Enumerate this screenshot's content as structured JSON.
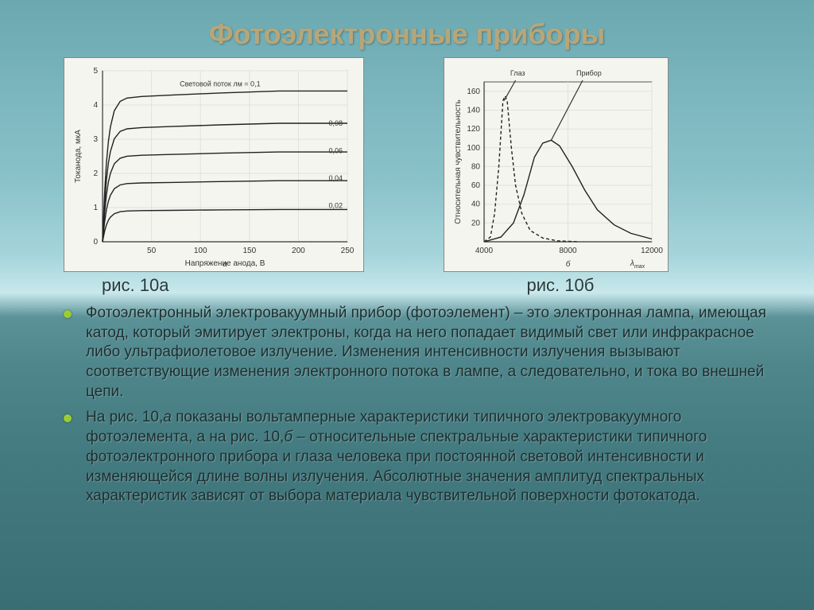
{
  "title": "Фотоэлектронные приборы",
  "chartA": {
    "type": "line",
    "caption": "рис. 10а",
    "sub": "а",
    "xlabel": "Напряжение анода, В",
    "ylabel": "Токанода, мкА",
    "legend_text": "Световой поток лм = 0,1",
    "xlim": [
      0,
      250
    ],
    "ylim": [
      0,
      5
    ],
    "xticks": [
      50,
      100,
      150,
      200,
      250
    ],
    "yticks": [
      0,
      1,
      2,
      3,
      4,
      5
    ],
    "series": [
      {
        "label": "0,1",
        "sat": 4.2
      },
      {
        "label": "0,08",
        "sat": 3.3
      },
      {
        "label": "0,06",
        "sat": 2.5
      },
      {
        "label": "0,04",
        "sat": 1.7
      },
      {
        "label": "0,02",
        "sat": 0.9
      }
    ],
    "curve_color": "#222222",
    "grid_color": "#e0e0e0",
    "background_color": "#f5f5f0",
    "axis_fontsize": 10
  },
  "chartB": {
    "type": "line",
    "caption": "рис. 10б",
    "sub": "б",
    "xlabel": "λmax",
    "ylabel": "Относительная чувствительность",
    "xlim": [
      4000,
      12000
    ],
    "ylim": [
      0,
      170
    ],
    "xticks": [
      4000,
      8000,
      12000
    ],
    "yticks": [
      20,
      40,
      60,
      80,
      100,
      120,
      140,
      160
    ],
    "series_eye": {
      "label": "Глаз",
      "points": [
        [
          4000,
          0
        ],
        [
          4300,
          5
        ],
        [
          4500,
          30
        ],
        [
          4700,
          80
        ],
        [
          4900,
          150
        ],
        [
          5000,
          155
        ],
        [
          5100,
          150
        ],
        [
          5300,
          100
        ],
        [
          5500,
          60
        ],
        [
          5800,
          30
        ],
        [
          6200,
          12
        ],
        [
          6800,
          4
        ],
        [
          7500,
          1
        ],
        [
          8500,
          0
        ]
      ]
    },
    "series_device": {
      "label": "Прибор",
      "points": [
        [
          4000,
          0
        ],
        [
          4800,
          5
        ],
        [
          5400,
          20
        ],
        [
          5900,
          50
        ],
        [
          6400,
          90
        ],
        [
          6800,
          105
        ],
        [
          7200,
          108
        ],
        [
          7600,
          102
        ],
        [
          8200,
          80
        ],
        [
          8800,
          55
        ],
        [
          9400,
          34
        ],
        [
          10200,
          18
        ],
        [
          11000,
          9
        ],
        [
          12000,
          3
        ]
      ]
    },
    "curve_color": "#222222",
    "grid_color": "#e0e0e0",
    "background_color": "#f5f5f0",
    "axis_fontsize": 10,
    "pointer_eye": [
      [
        4950,
        150
      ],
      [
        5600,
        -12
      ]
    ],
    "pointer_dev": [
      [
        7200,
        108
      ],
      [
        8800,
        -12
      ]
    ]
  },
  "bullets": [
    "Фотоэлектронный электровакуумный прибор (фотоэлемент) – это электронная лампа, имеющая катод, который эмитирует электроны, когда на него попадает видимый свет или инфракрасное либо ультрафиолетовое излучение. Изменения интенсивности излучения вызывают соответствующие изменения электронного потока в лампе, а следовательно, и тока во внешней цепи.",
    "На рис. 10,а показаны вольтамперные характеристики типичного электровакуумного фотоэлемента, а на рис. 10,б – относительные спектральные характеристики типичного фотоэлектронного прибора и глаза человека при постоянной световой интенсивности и изменяющейся длине волны излучения. Абсолютные значения амплитуд спектральных характеристик зависят от выбора материала чувствительной поверхности фотокатода."
  ]
}
